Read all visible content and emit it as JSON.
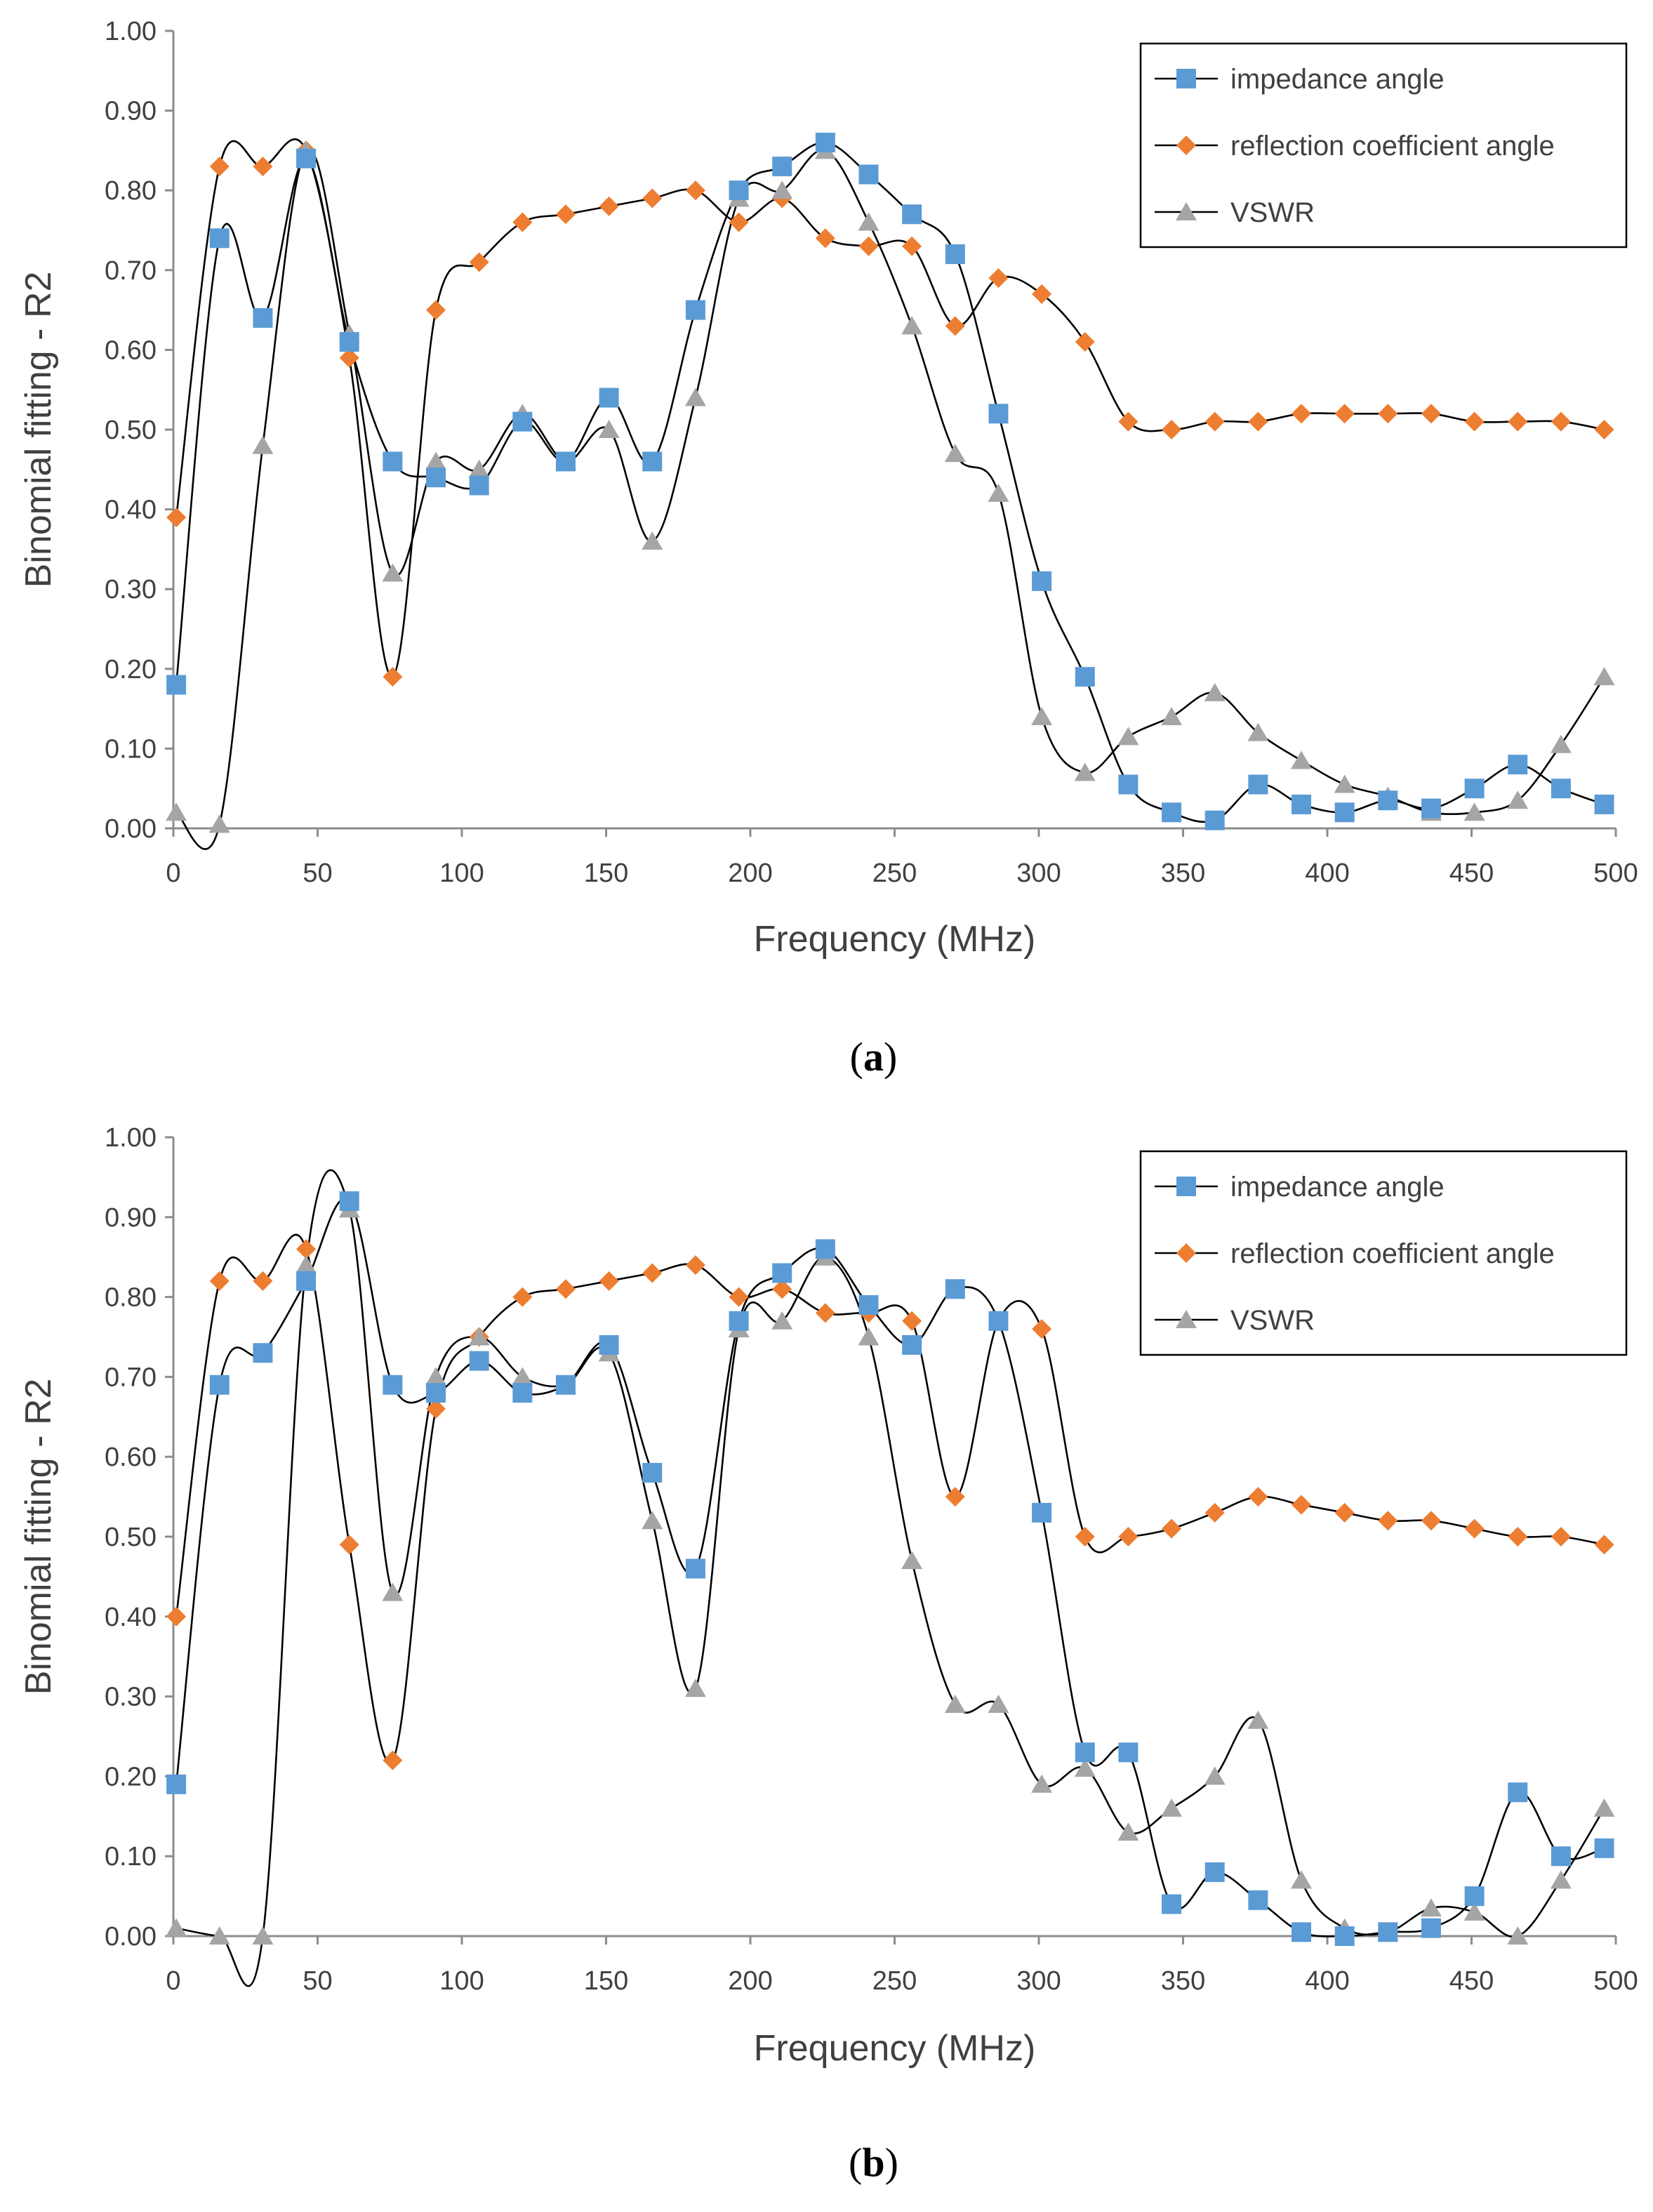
{
  "chart_data": [
    {
      "type": "line",
      "panel_label": "a",
      "xlabel": "Frequency (MHz)",
      "ylabel": "Binomial fitting - R2",
      "xlim": [
        0,
        500
      ],
      "ylim": [
        0,
        1
      ],
      "xticks": [
        "0",
        "50",
        "100",
        "150",
        "200",
        "250",
        "300",
        "350",
        "400",
        "450",
        "500"
      ],
      "yticks": [
        "0.00",
        "0.10",
        "0.20",
        "0.30",
        "0.40",
        "0.50",
        "0.60",
        "0.70",
        "0.80",
        "0.90",
        "1.00"
      ],
      "legend_position": "top-right",
      "x": [
        1,
        16,
        31,
        46,
        61,
        76,
        91,
        106,
        121,
        136,
        151,
        166,
        181,
        196,
        211,
        226,
        241,
        256,
        271,
        286,
        301,
        316,
        331,
        346,
        361,
        376,
        391,
        406,
        421,
        436,
        451,
        466,
        481,
        496
      ],
      "series": [
        {
          "name": "impedance angle",
          "marker": "square",
          "color": "#5B9BD5",
          "values": [
            0.18,
            0.74,
            0.64,
            0.84,
            0.61,
            0.46,
            0.44,
            0.43,
            0.51,
            0.46,
            0.54,
            0.46,
            0.65,
            0.8,
            0.83,
            0.86,
            0.82,
            0.77,
            0.72,
            0.52,
            0.31,
            0.19,
            0.055,
            0.02,
            0.01,
            0.055,
            0.03,
            0.02,
            0.035,
            0.025,
            0.05,
            0.08,
            0.05,
            0.03
          ]
        },
        {
          "name": "reflection coefficient angle",
          "marker": "diamond",
          "color": "#ED7D31",
          "values": [
            0.39,
            0.83,
            0.83,
            0.85,
            0.59,
            0.19,
            0.65,
            0.71,
            0.76,
            0.77,
            0.78,
            0.79,
            0.8,
            0.76,
            0.79,
            0.74,
            0.73,
            0.73,
            0.63,
            0.69,
            0.67,
            0.61,
            0.51,
            0.5,
            0.51,
            0.51,
            0.52,
            0.52,
            0.52,
            0.52,
            0.51,
            0.51,
            0.51,
            0.5
          ]
        },
        {
          "name": "VSWR",
          "marker": "triangle",
          "color": "#A5A5A5",
          "values": [
            0.02,
            0.005,
            0.48,
            0.85,
            0.62,
            0.32,
            0.46,
            0.45,
            0.52,
            0.46,
            0.5,
            0.36,
            0.54,
            0.79,
            0.8,
            0.85,
            0.76,
            0.63,
            0.47,
            0.42,
            0.14,
            0.07,
            0.115,
            0.14,
            0.17,
            0.12,
            0.085,
            0.055,
            0.04,
            0.02,
            0.02,
            0.035,
            0.105,
            0.19
          ]
        }
      ]
    },
    {
      "type": "line",
      "panel_label": "b",
      "xlabel": "Frequency (MHz)",
      "ylabel": "Binomial fitting - R2",
      "xlim": [
        0,
        500
      ],
      "ylim": [
        0,
        1
      ],
      "xticks": [
        "0",
        "50",
        "100",
        "150",
        "200",
        "250",
        "300",
        "350",
        "400",
        "450",
        "500"
      ],
      "yticks": [
        "0.00",
        "0.10",
        "0.20",
        "0.30",
        "0.40",
        "0.50",
        "0.60",
        "0.70",
        "0.80",
        "0.90",
        "1.00"
      ],
      "legend_position": "top-right",
      "x": [
        1,
        16,
        31,
        46,
        61,
        76,
        91,
        106,
        121,
        136,
        151,
        166,
        181,
        196,
        211,
        226,
        241,
        256,
        271,
        286,
        301,
        316,
        331,
        346,
        361,
        376,
        391,
        406,
        421,
        436,
        451,
        466,
        481,
        496
      ],
      "series": [
        {
          "name": "impedance angle",
          "marker": "square",
          "color": "#5B9BD5",
          "values": [
            0.19,
            0.69,
            0.73,
            0.82,
            0.92,
            0.69,
            0.68,
            0.72,
            0.68,
            0.69,
            0.74,
            0.58,
            0.46,
            0.77,
            0.83,
            0.86,
            0.79,
            0.74,
            0.81,
            0.77,
            0.53,
            0.23,
            0.23,
            0.04,
            0.08,
            0.045,
            0.005,
            0.0,
            0.005,
            0.01,
            0.05,
            0.18,
            0.1,
            0.11
          ]
        },
        {
          "name": "reflection coefficient angle",
          "marker": "diamond",
          "color": "#ED7D31",
          "values": [
            0.4,
            0.82,
            0.82,
            0.86,
            0.49,
            0.22,
            0.66,
            0.75,
            0.8,
            0.81,
            0.82,
            0.83,
            0.84,
            0.8,
            0.81,
            0.78,
            0.78,
            0.77,
            0.55,
            0.77,
            0.76,
            0.5,
            0.5,
            0.51,
            0.53,
            0.55,
            0.54,
            0.53,
            0.52,
            0.52,
            0.51,
            0.5,
            0.5,
            0.49
          ]
        },
        {
          "name": "VSWR",
          "marker": "triangle",
          "color": "#A5A5A5",
          "values": [
            0.01,
            0.0,
            0.0,
            0.84,
            0.91,
            0.43,
            0.7,
            0.75,
            0.7,
            0.69,
            0.73,
            0.52,
            0.31,
            0.76,
            0.77,
            0.85,
            0.75,
            0.47,
            0.29,
            0.29,
            0.19,
            0.21,
            0.13,
            0.16,
            0.2,
            0.27,
            0.07,
            0.01,
            0.005,
            0.035,
            0.03,
            0.0,
            0.07,
            0.16
          ]
        }
      ]
    }
  ]
}
